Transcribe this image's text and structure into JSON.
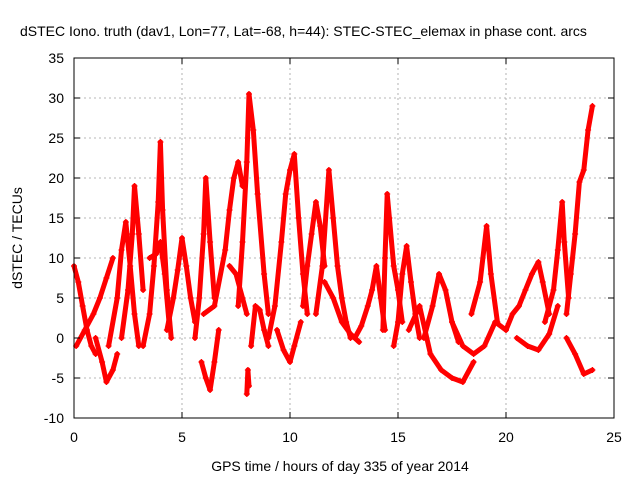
{
  "chart_data": {
    "type": "scatter",
    "title": "dSTEC Iono. truth (dav1, Lon=77, Lat=-68, h=44): STEC-STEC_elemax in phase cont. arcs",
    "xlabel": "GPS time / hours of day 335 of year 2014",
    "ylabel": "dSTEC  / TECUs",
    "xlim": [
      0,
      25
    ],
    "ylim": [
      -10,
      35
    ],
    "xticks": [
      0,
      5,
      10,
      15,
      20,
      25
    ],
    "yticks": [
      -10,
      -5,
      0,
      5,
      10,
      15,
      20,
      25,
      30,
      35
    ],
    "grid": true,
    "marker": "+",
    "series": [
      {
        "name": "dSTEC",
        "color": "#ff0000",
        "arcs": [
          [
            [
              0.0,
              9.0
            ],
            [
              0.2,
              7.0
            ],
            [
              0.4,
              4.0
            ],
            [
              0.6,
              1.0
            ],
            [
              0.8,
              -1.0
            ],
            [
              1.0,
              -2.0
            ]
          ],
          [
            [
              0.1,
              -1.0
            ],
            [
              0.5,
              1.0
            ],
            [
              0.9,
              3.0
            ],
            [
              1.2,
              5.0
            ],
            [
              1.5,
              7.5
            ],
            [
              1.8,
              10.0
            ]
          ],
          [
            [
              1.0,
              0.0
            ],
            [
              1.3,
              -3.0
            ],
            [
              1.5,
              -5.5
            ],
            [
              1.8,
              -4.0
            ],
            [
              2.0,
              -2.0
            ]
          ],
          [
            [
              1.6,
              -1.0
            ],
            [
              2.0,
              5.0
            ],
            [
              2.2,
              11.0
            ],
            [
              2.4,
              14.5
            ],
            [
              2.6,
              9.0
            ],
            [
              2.8,
              3.0
            ],
            [
              3.0,
              -1.0
            ]
          ],
          [
            [
              2.2,
              0.0
            ],
            [
              2.5,
              6.0
            ],
            [
              2.7,
              13.0
            ],
            [
              2.8,
              19.0
            ],
            [
              3.0,
              13.0
            ],
            [
              3.2,
              6.0
            ]
          ],
          [
            [
              3.2,
              -1.0
            ],
            [
              3.5,
              3.0
            ],
            [
              3.7,
              9.0
            ],
            [
              3.9,
              17.0
            ],
            [
              4.0,
              24.5
            ],
            [
              4.1,
              16.0
            ],
            [
              4.3,
              6.0
            ],
            [
              4.5,
              0.0
            ]
          ],
          [
            [
              3.5,
              10.0
            ],
            [
              3.8,
              10.5
            ],
            [
              4.0,
              12.0
            ],
            [
              4.2,
              8.0
            ],
            [
              4.4,
              2.0
            ]
          ],
          [
            [
              4.3,
              1.0
            ],
            [
              4.6,
              5.0
            ],
            [
              4.8,
              8.5
            ],
            [
              5.0,
              12.5
            ],
            [
              5.2,
              9.0
            ],
            [
              5.4,
              5.0
            ],
            [
              5.6,
              2.0
            ]
          ],
          [
            [
              5.6,
              0.0
            ],
            [
              5.8,
              5.0
            ],
            [
              6.0,
              13.0
            ],
            [
              6.1,
              20.0
            ],
            [
              6.3,
              12.0
            ],
            [
              6.5,
              5.0
            ]
          ],
          [
            [
              5.9,
              -3.0
            ],
            [
              6.1,
              -5.0
            ],
            [
              6.3,
              -6.5
            ],
            [
              6.5,
              -3.0
            ],
            [
              6.7,
              1.0
            ]
          ],
          [
            [
              6.0,
              3.0
            ],
            [
              6.5,
              4.0
            ],
            [
              7.0,
              11.0
            ],
            [
              7.2,
              16.0
            ],
            [
              7.4,
              20.0
            ],
            [
              7.6,
              22.0
            ],
            [
              7.8,
              19.0
            ]
          ],
          [
            [
              7.2,
              9.0
            ],
            [
              7.5,
              8.0
            ],
            [
              7.8,
              5.0
            ],
            [
              8.0,
              3.0
            ]
          ],
          [
            [
              8.0,
              -7.0
            ],
            [
              8.05,
              -4.0
            ],
            [
              8.1,
              -6.0
            ]
          ],
          [
            [
              7.6,
              4.0
            ],
            [
              7.8,
              12.0
            ],
            [
              8.0,
              22.0
            ],
            [
              8.1,
              30.5
            ],
            [
              8.3,
              26.0
            ],
            [
              8.5,
              18.0
            ],
            [
              8.8,
              8.0
            ],
            [
              9.0,
              3.0
            ]
          ],
          [
            [
              8.2,
              -1.0
            ],
            [
              8.4,
              4.0
            ],
            [
              8.6,
              3.5
            ],
            [
              8.8,
              1.0
            ],
            [
              9.0,
              -1.0
            ]
          ],
          [
            [
              9.0,
              0.0
            ],
            [
              9.3,
              4.0
            ],
            [
              9.6,
              12.0
            ],
            [
              9.8,
              18.0
            ],
            [
              10.0,
              21.0
            ],
            [
              10.2,
              23.0
            ],
            [
              10.4,
              15.0
            ],
            [
              10.6,
              8.0
            ],
            [
              10.8,
              3.0
            ]
          ],
          [
            [
              9.4,
              1.0
            ],
            [
              9.7,
              -1.5
            ],
            [
              10.0,
              -3.0
            ],
            [
              10.2,
              -1.0
            ],
            [
              10.5,
              2.0
            ]
          ],
          [
            [
              10.6,
              4.0
            ],
            [
              10.8,
              9.0
            ],
            [
              11.0,
              13.0
            ],
            [
              11.2,
              17.0
            ],
            [
              11.4,
              14.0
            ],
            [
              11.6,
              9.0
            ]
          ],
          [
            [
              11.2,
              3.0
            ],
            [
              11.5,
              9.0
            ],
            [
              11.8,
              21.0
            ],
            [
              12.0,
              15.0
            ],
            [
              12.2,
              9.0
            ],
            [
              12.4,
              5.0
            ],
            [
              12.6,
              2.0
            ],
            [
              12.8,
              0.0
            ]
          ],
          [
            [
              11.6,
              7.0
            ],
            [
              12.0,
              5.0
            ],
            [
              12.4,
              2.0
            ],
            [
              12.8,
              0.5
            ],
            [
              13.2,
              -0.5
            ]
          ],
          [
            [
              13.0,
              0.0
            ],
            [
              13.3,
              1.5
            ],
            [
              13.6,
              4.0
            ],
            [
              13.8,
              6.0
            ],
            [
              14.0,
              9.0
            ],
            [
              14.2,
              5.0
            ],
            [
              14.4,
              1.0
            ]
          ],
          [
            [
              14.3,
              1.0
            ],
            [
              14.4,
              10.0
            ],
            [
              14.5,
              18.0
            ],
            [
              14.6,
              15.0
            ],
            [
              14.8,
              9.0
            ],
            [
              15.0,
              6.0
            ],
            [
              15.2,
              2.0
            ]
          ],
          [
            [
              14.8,
              -1.0
            ],
            [
              15.0,
              2.0
            ],
            [
              15.2,
              8.0
            ],
            [
              15.4,
              11.5
            ],
            [
              15.6,
              7.0
            ],
            [
              15.8,
              3.0
            ],
            [
              16.0,
              0.0
            ]
          ],
          [
            [
              15.5,
              1.0
            ],
            [
              16.0,
              4.0
            ],
            [
              16.5,
              -2.0
            ],
            [
              17.0,
              -4.0
            ],
            [
              17.5,
              -5.0
            ],
            [
              18.0,
              -5.5
            ],
            [
              18.5,
              -3.0
            ]
          ],
          [
            [
              16.2,
              0.0
            ],
            [
              16.6,
              4.0
            ],
            [
              16.9,
              8.0
            ],
            [
              17.2,
              6.0
            ],
            [
              17.5,
              2.0
            ],
            [
              17.8,
              -0.5
            ]
          ],
          [
            [
              17.5,
              2.0
            ],
            [
              18.0,
              -1.0
            ],
            [
              18.5,
              -2.0
            ],
            [
              19.0,
              -1.0
            ],
            [
              19.5,
              2.0
            ],
            [
              20.0,
              1.0
            ]
          ],
          [
            [
              18.4,
              3.0
            ],
            [
              18.8,
              7.0
            ],
            [
              19.1,
              14.0
            ],
            [
              19.3,
              8.0
            ],
            [
              19.6,
              2.0
            ]
          ],
          [
            [
              20.0,
              1.0
            ],
            [
              20.3,
              3.0
            ],
            [
              20.6,
              4.0
            ],
            [
              20.9,
              6.0
            ],
            [
              21.2,
              8.0
            ],
            [
              21.5,
              9.5
            ],
            [
              21.7,
              7.0
            ],
            [
              22.0,
              3.0
            ]
          ],
          [
            [
              20.5,
              0.0
            ],
            [
              21.0,
              -1.0
            ],
            [
              21.5,
              -1.5
            ],
            [
              22.0,
              0.5
            ],
            [
              22.4,
              4.0
            ]
          ],
          [
            [
              21.8,
              2.0
            ],
            [
              22.2,
              6.0
            ],
            [
              22.4,
              11.0
            ],
            [
              22.6,
              17.0
            ],
            [
              22.7,
              12.0
            ],
            [
              22.9,
              5.0
            ]
          ],
          [
            [
              22.8,
              3.0
            ],
            [
              23.0,
              8.0
            ],
            [
              23.2,
              13.0
            ],
            [
              23.4,
              19.5
            ],
            [
              23.6,
              21.0
            ],
            [
              23.8,
              26.0
            ],
            [
              24.0,
              29.0
            ]
          ],
          [
            [
              22.8,
              0.0
            ],
            [
              23.2,
              -2.0
            ],
            [
              23.6,
              -4.5
            ],
            [
              24.0,
              -4.0
            ]
          ]
        ]
      }
    ]
  }
}
